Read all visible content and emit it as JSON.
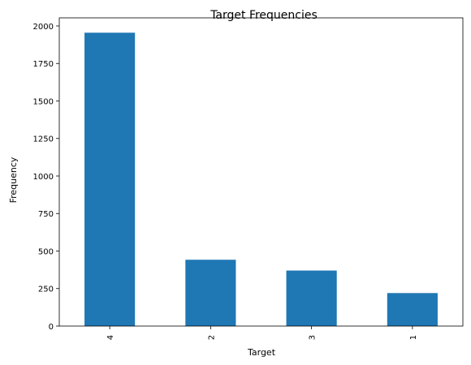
{
  "chart_data": {
    "type": "bar",
    "title": "Target Frequencies",
    "xlabel": "Target",
    "ylabel": "Frequency",
    "categories": [
      "4",
      "2",
      "3",
      "1"
    ],
    "values": [
      1955,
      442,
      370,
      220
    ],
    "ylim": [
      0,
      2054
    ],
    "yticks": [
      0,
      250,
      500,
      750,
      1000,
      1250,
      1500,
      1750,
      2000
    ],
    "bar_color": "#1f77b4",
    "grid": false,
    "legend": "none"
  }
}
